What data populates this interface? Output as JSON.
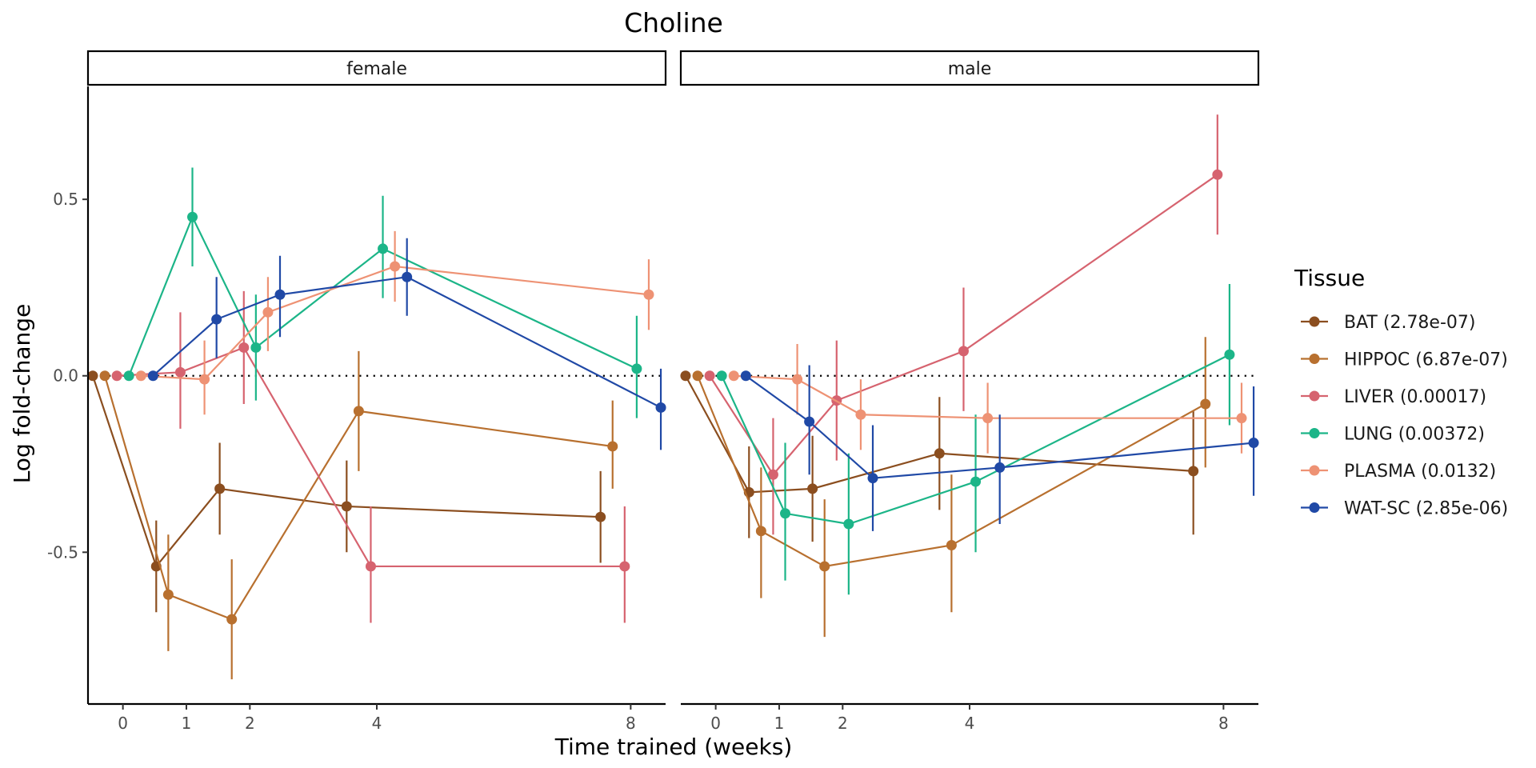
{
  "chart_data": {
    "type": "line",
    "title": "Choline",
    "xlabel": "Time trained (weeks)",
    "ylabel": "Log fold-change",
    "x_ticks": [
      0,
      1,
      2,
      4,
      8
    ],
    "y_ticks": [
      0.5,
      0.0,
      -0.5
    ],
    "y_tick_labels": [
      "0.5",
      "0.0",
      "-0.5"
    ],
    "ylim": [
      -0.93,
      0.82
    ],
    "xlim": [
      -0.55,
      8.55
    ],
    "reference_line": 0,
    "legend": {
      "title": "Tissue",
      "position": "right"
    },
    "series": [
      {
        "name": "BAT (2.78e-07)",
        "color": "#8B4E1F",
        "panels": {
          "female": [
            [
              0,
              0,
              0,
              0
            ],
            [
              1,
              -0.54,
              -0.67,
              -0.41
            ],
            [
              2,
              -0.32,
              -0.45,
              -0.19
            ],
            [
              4,
              -0.37,
              -0.5,
              -0.24
            ],
            [
              8,
              -0.4,
              -0.53,
              -0.27
            ]
          ],
          "male": [
            [
              0,
              0,
              0,
              0
            ],
            [
              1,
              -0.33,
              -0.46,
              -0.2
            ],
            [
              2,
              -0.32,
              -0.47,
              -0.17
            ],
            [
              4,
              -0.22,
              -0.38,
              -0.06
            ],
            [
              8,
              -0.27,
              -0.45,
              -0.1
            ]
          ]
        }
      },
      {
        "name": "HIPPOC (6.87e-07)",
        "color": "#B8702F",
        "panels": {
          "female": [
            [
              0,
              0,
              0,
              0
            ],
            [
              1,
              -0.62,
              -0.78,
              -0.45
            ],
            [
              2,
              -0.69,
              -0.86,
              -0.52
            ],
            [
              4,
              -0.1,
              -0.27,
              0.07
            ],
            [
              8,
              -0.2,
              -0.32,
              -0.07
            ]
          ],
          "male": [
            [
              0,
              0,
              0,
              0
            ],
            [
              1,
              -0.44,
              -0.63,
              -0.26
            ],
            [
              2,
              -0.54,
              -0.74,
              -0.35
            ],
            [
              4,
              -0.48,
              -0.67,
              -0.28
            ],
            [
              8,
              -0.08,
              -0.26,
              0.11
            ]
          ]
        }
      },
      {
        "name": "LIVER (0.00017)",
        "color": "#D6636F",
        "panels": {
          "female": [
            [
              0,
              0,
              0,
              0
            ],
            [
              1,
              0.01,
              -0.15,
              0.18
            ],
            [
              2,
              0.08,
              -0.08,
              0.24
            ],
            [
              4,
              -0.54,
              -0.7,
              -0.37
            ],
            [
              8,
              -0.54,
              -0.7,
              -0.37
            ]
          ],
          "male": [
            [
              0,
              0,
              0,
              0
            ],
            [
              1,
              -0.28,
              -0.45,
              -0.12
            ],
            [
              2,
              -0.07,
              -0.24,
              0.1
            ],
            [
              4,
              0.07,
              -0.1,
              0.25
            ],
            [
              8,
              0.57,
              0.4,
              0.74
            ]
          ]
        }
      },
      {
        "name": "LUNG (0.00372)",
        "color": "#1CB588",
        "panels": {
          "female": [
            [
              0,
              0,
              0,
              0
            ],
            [
              1,
              0.45,
              0.31,
              0.59
            ],
            [
              2,
              0.08,
              -0.07,
              0.23
            ],
            [
              4,
              0.36,
              0.22,
              0.51
            ],
            [
              8,
              0.02,
              -0.12,
              0.17
            ]
          ],
          "male": [
            [
              0,
              0,
              0,
              0
            ],
            [
              1,
              -0.39,
              -0.58,
              -0.19
            ],
            [
              2,
              -0.42,
              -0.62,
              -0.22
            ],
            [
              4,
              -0.3,
              -0.5,
              -0.11
            ],
            [
              8,
              0.06,
              -0.14,
              0.26
            ]
          ]
        }
      },
      {
        "name": "PLASMA (0.0132)",
        "color": "#EE9274",
        "panels": {
          "female": [
            [
              0,
              0,
              0,
              0
            ],
            [
              1,
              -0.01,
              -0.11,
              0.1
            ],
            [
              2,
              0.18,
              0.07,
              0.28
            ],
            [
              4,
              0.31,
              0.21,
              0.41
            ],
            [
              8,
              0.23,
              0.13,
              0.33
            ]
          ],
          "male": [
            [
              0,
              0,
              0,
              0
            ],
            [
              1,
              -0.01,
              -0.11,
              0.09
            ],
            [
              2,
              -0.11,
              -0.21,
              -0.01
            ],
            [
              4,
              -0.12,
              -0.22,
              -0.02
            ],
            [
              8,
              -0.12,
              -0.22,
              -0.02
            ]
          ]
        }
      },
      {
        "name": "WAT-SC (2.85e-06)",
        "color": "#2049A6",
        "panels": {
          "female": [
            [
              0,
              0,
              0,
              0
            ],
            [
              1,
              0.16,
              0.05,
              0.28
            ],
            [
              2,
              0.23,
              0.11,
              0.34
            ],
            [
              4,
              0.28,
              0.17,
              0.39
            ],
            [
              8,
              -0.09,
              -0.21,
              0.02
            ]
          ],
          "male": [
            [
              0,
              0,
              0,
              0
            ],
            [
              1,
              -0.13,
              -0.28,
              0.03
            ],
            [
              2,
              -0.29,
              -0.44,
              -0.14
            ],
            [
              4,
              -0.26,
              -0.42,
              -0.11
            ],
            [
              8,
              -0.19,
              -0.34,
              -0.03
            ]
          ]
        }
      }
    ],
    "panels": [
      "female",
      "male"
    ]
  }
}
